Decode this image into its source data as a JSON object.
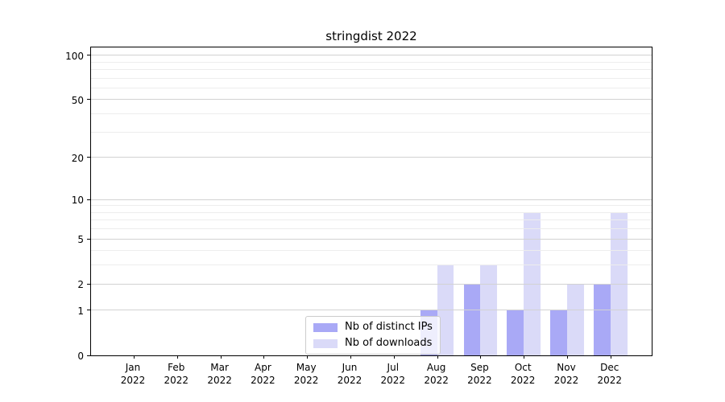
{
  "chart_data": {
    "type": "bar",
    "title": "stringdist 2022",
    "categories": [
      "Jan",
      "Feb",
      "Mar",
      "Apr",
      "May",
      "Jun",
      "Jul",
      "Aug",
      "Sep",
      "Oct",
      "Nov",
      "Dec"
    ],
    "year_label": "2022",
    "series": [
      {
        "name": "Nb of distinct IPs",
        "color": "#a9a9f6",
        "values": [
          0,
          0,
          0,
          0,
          0,
          0,
          0,
          1,
          2,
          1,
          1,
          2
        ]
      },
      {
        "name": "Nb of downloads",
        "color": "#dadaf8",
        "values": [
          0,
          0,
          0,
          0,
          0,
          0,
          0,
          3,
          3,
          8,
          2,
          8
        ]
      }
    ],
    "y_axis": {
      "scale": "log1p",
      "min": 0,
      "max": 115.6,
      "major_ticks": [
        0,
        1,
        2,
        5,
        10,
        20,
        50,
        100
      ],
      "minor_ticks": [
        3,
        4,
        6,
        7,
        8,
        9,
        30,
        40,
        60,
        70,
        80,
        90
      ]
    },
    "x_axis": {
      "tick_count": 12
    },
    "grid": {
      "major_color": "#d2d2d2",
      "minor_color": "#ededed",
      "on": true
    },
    "legend": {
      "position": "bottom-center",
      "frame": true
    },
    "bar_colors": {
      "distinct_ips": "#a9a9f6",
      "downloads": "#dadaf8"
    },
    "spine_color": "#000000",
    "background": "#ffffff"
  }
}
